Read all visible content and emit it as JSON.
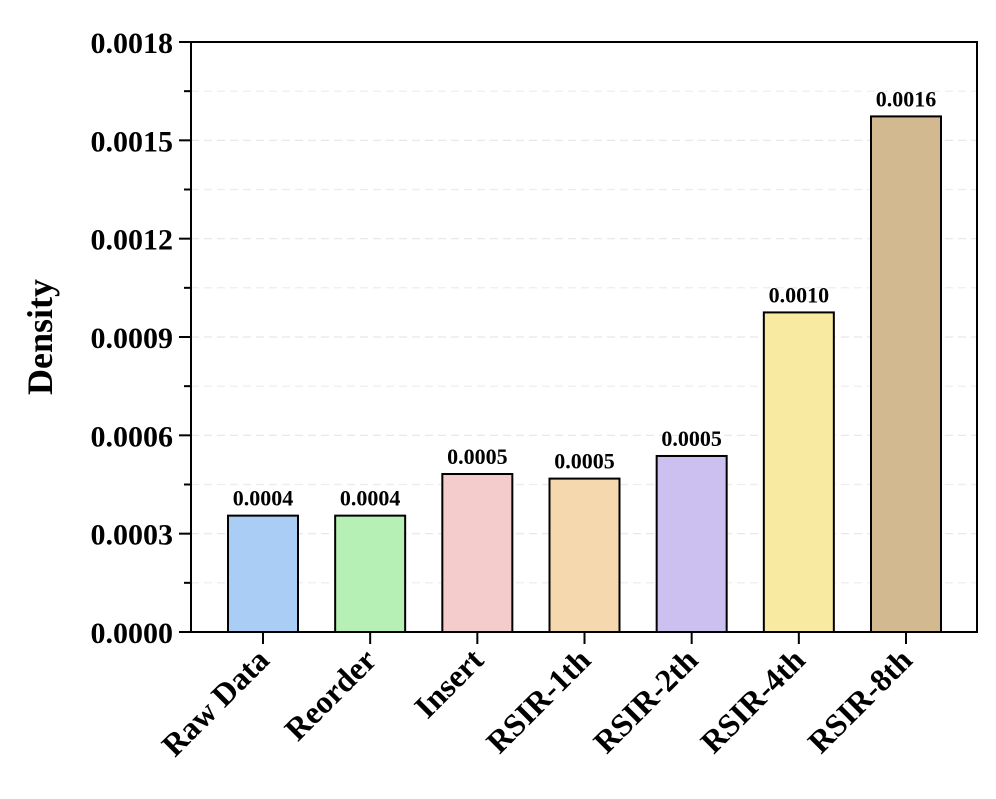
{
  "chart_data": {
    "type": "bar",
    "ylabel": "Density",
    "xlabel": "",
    "ylim": [
      0,
      0.0018
    ],
    "yticks": [
      "0.0000",
      "0.0003",
      "0.0006",
      "0.0009",
      "0.0012",
      "0.0015",
      "0.0018"
    ],
    "grid": "horizontal dashed",
    "categories": [
      "Raw Data",
      "Reorder",
      "Insert",
      "RSIR-1th",
      "RSIR-2th",
      "RSIR-4th",
      "RSIR-8th"
    ],
    "values": [
      0.000355,
      0.000355,
      0.000482,
      0.000468,
      0.000537,
      0.000975,
      0.001573
    ],
    "data_labels": [
      "0.0004",
      "0.0004",
      "0.0005",
      "0.0005",
      "0.0005",
      "0.0010",
      "0.0016"
    ],
    "colors": [
      "#a9cdf5",
      "#b6f0b4",
      "#f4cccb",
      "#f6d8ae",
      "#cbc0f0",
      "#f9eaa1",
      "#d3b98f"
    ]
  }
}
